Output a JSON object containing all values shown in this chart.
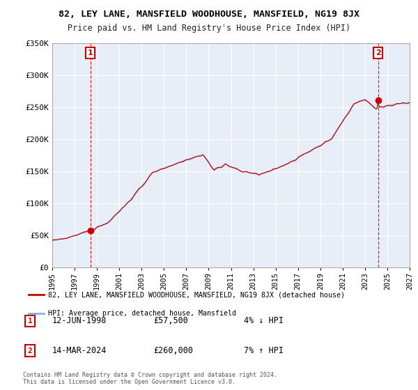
{
  "title": "82, LEY LANE, MANSFIELD WOODHOUSE, MANSFIELD, NG19 8JX",
  "subtitle": "Price paid vs. HM Land Registry's House Price Index (HPI)",
  "sale1_date": "12-JUN-1998",
  "sale1_price": 57500,
  "sale1_hpi": "4% ↓ HPI",
  "sale2_date": "14-MAR-2024",
  "sale2_price": 260000,
  "sale2_hpi": "7% ↑ HPI",
  "legend1": "82, LEY LANE, MANSFIELD WOODHOUSE, MANSFIELD, NG19 8JX (detached house)",
  "legend2": "HPI: Average price, detached house, Mansfield",
  "copyright": "Contains HM Land Registry data © Crown copyright and database right 2024.\nThis data is licensed under the Open Government Licence v3.0.",
  "hpi_color": "#7ab8e8",
  "sale_color": "#cc0000",
  "background_color": "#ffffff",
  "plot_bg_color": "#e8eef8",
  "grid_color": "#ffffff",
  "ylim": [
    0,
    350000
  ],
  "yticks": [
    0,
    50000,
    100000,
    150000,
    200000,
    250000,
    300000,
    350000
  ],
  "ytick_labels": [
    "£0",
    "£50K",
    "£100K",
    "£150K",
    "£200K",
    "£250K",
    "£300K",
    "£350K"
  ],
  "xstart": 1995,
  "xend": 2027
}
